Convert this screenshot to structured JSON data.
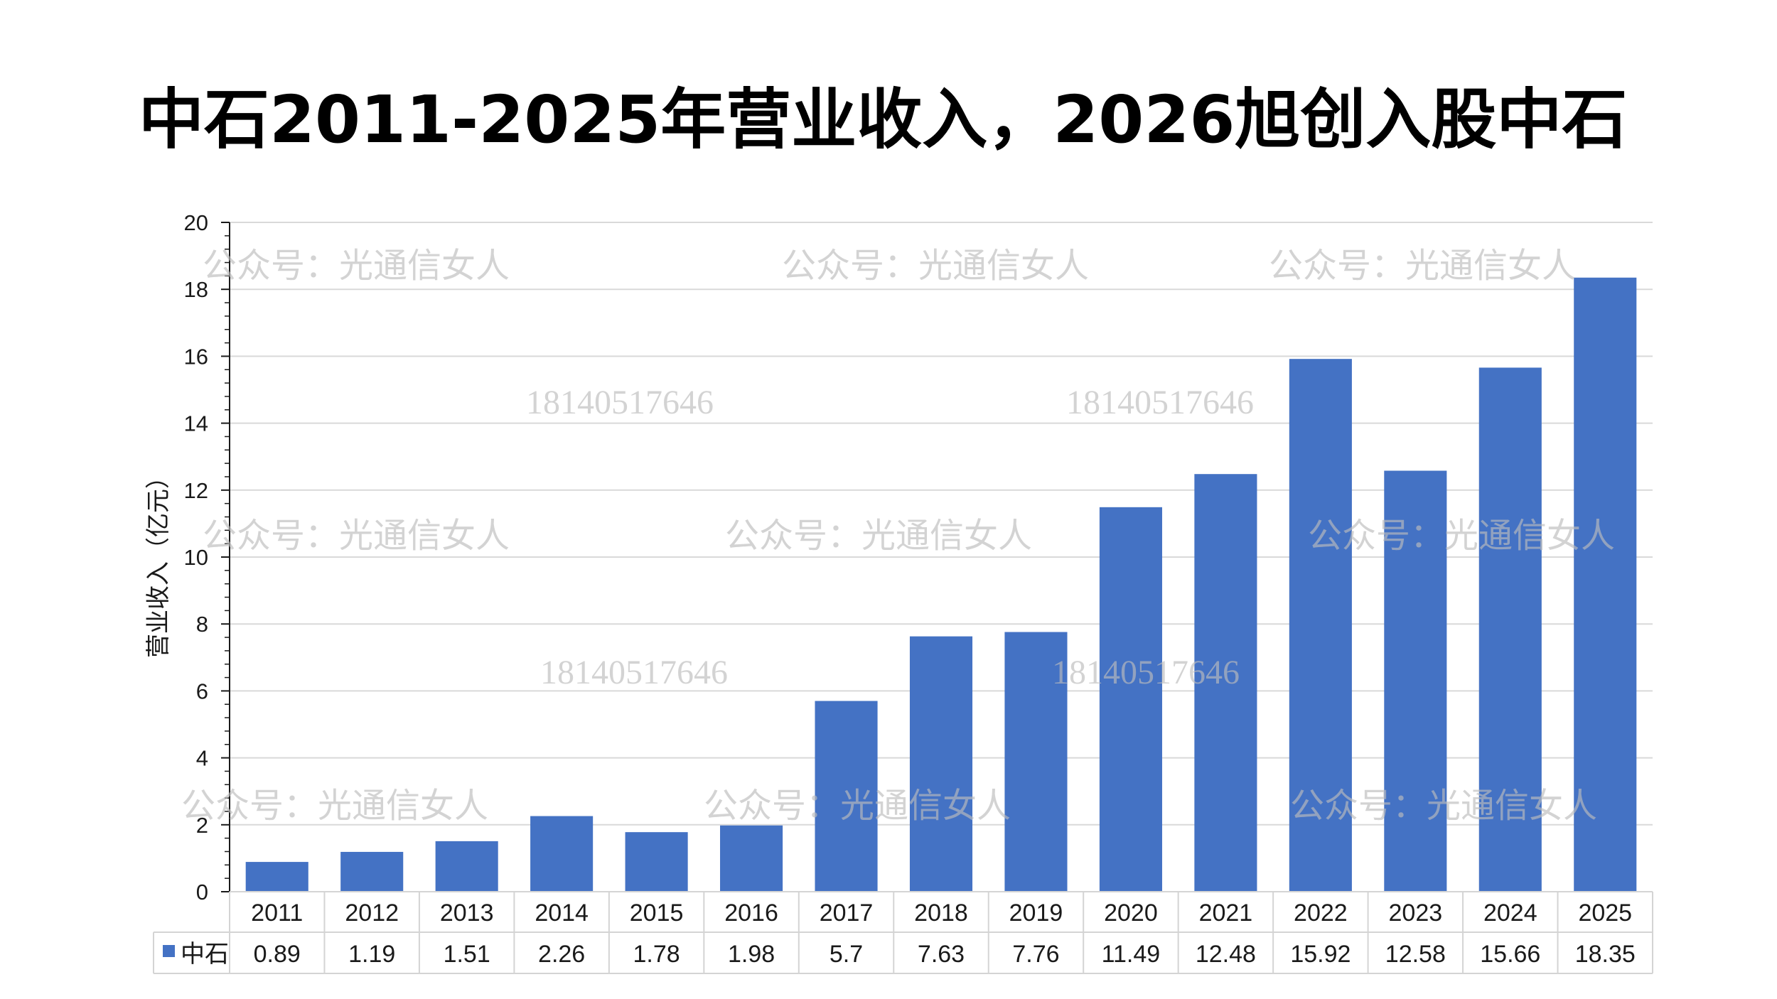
{
  "title": "中石2011-2025年营业收入，2026旭创入股中石",
  "watermarks": {
    "account": "公众号：光通信女人",
    "phone": "18140517646"
  },
  "colors": {
    "bar": "#4472C4",
    "grid": "#d9d9d9",
    "axis": "#1a1a1a"
  },
  "chart_data": {
    "type": "bar",
    "ylabel": "营业收入（亿元）",
    "ylim": [
      0,
      20
    ],
    "yticks": [
      "0",
      "2",
      "4",
      "6",
      "8",
      "10",
      "12",
      "14",
      "16",
      "18",
      "20"
    ],
    "grid": true,
    "categories": [
      "2011",
      "2012",
      "2013",
      "2014",
      "2015",
      "2016",
      "2017",
      "2018",
      "2019",
      "2020",
      "2021",
      "2022",
      "2023",
      "2024",
      "2025"
    ],
    "series": [
      {
        "name": "中石",
        "values": [
          0.89,
          1.19,
          1.51,
          2.26,
          1.78,
          1.98,
          5.7,
          7.63,
          7.76,
          11.49,
          12.48,
          15.92,
          12.58,
          15.66,
          18.35
        ],
        "labels": [
          "0.89",
          "1.19",
          "1.51",
          "2.26",
          "1.78",
          "1.98",
          "5.7",
          "7.63",
          "7.76",
          "11.49",
          "12.48",
          "15.92",
          "12.58",
          "15.66",
          "18.35"
        ]
      }
    ],
    "data_table": true
  }
}
